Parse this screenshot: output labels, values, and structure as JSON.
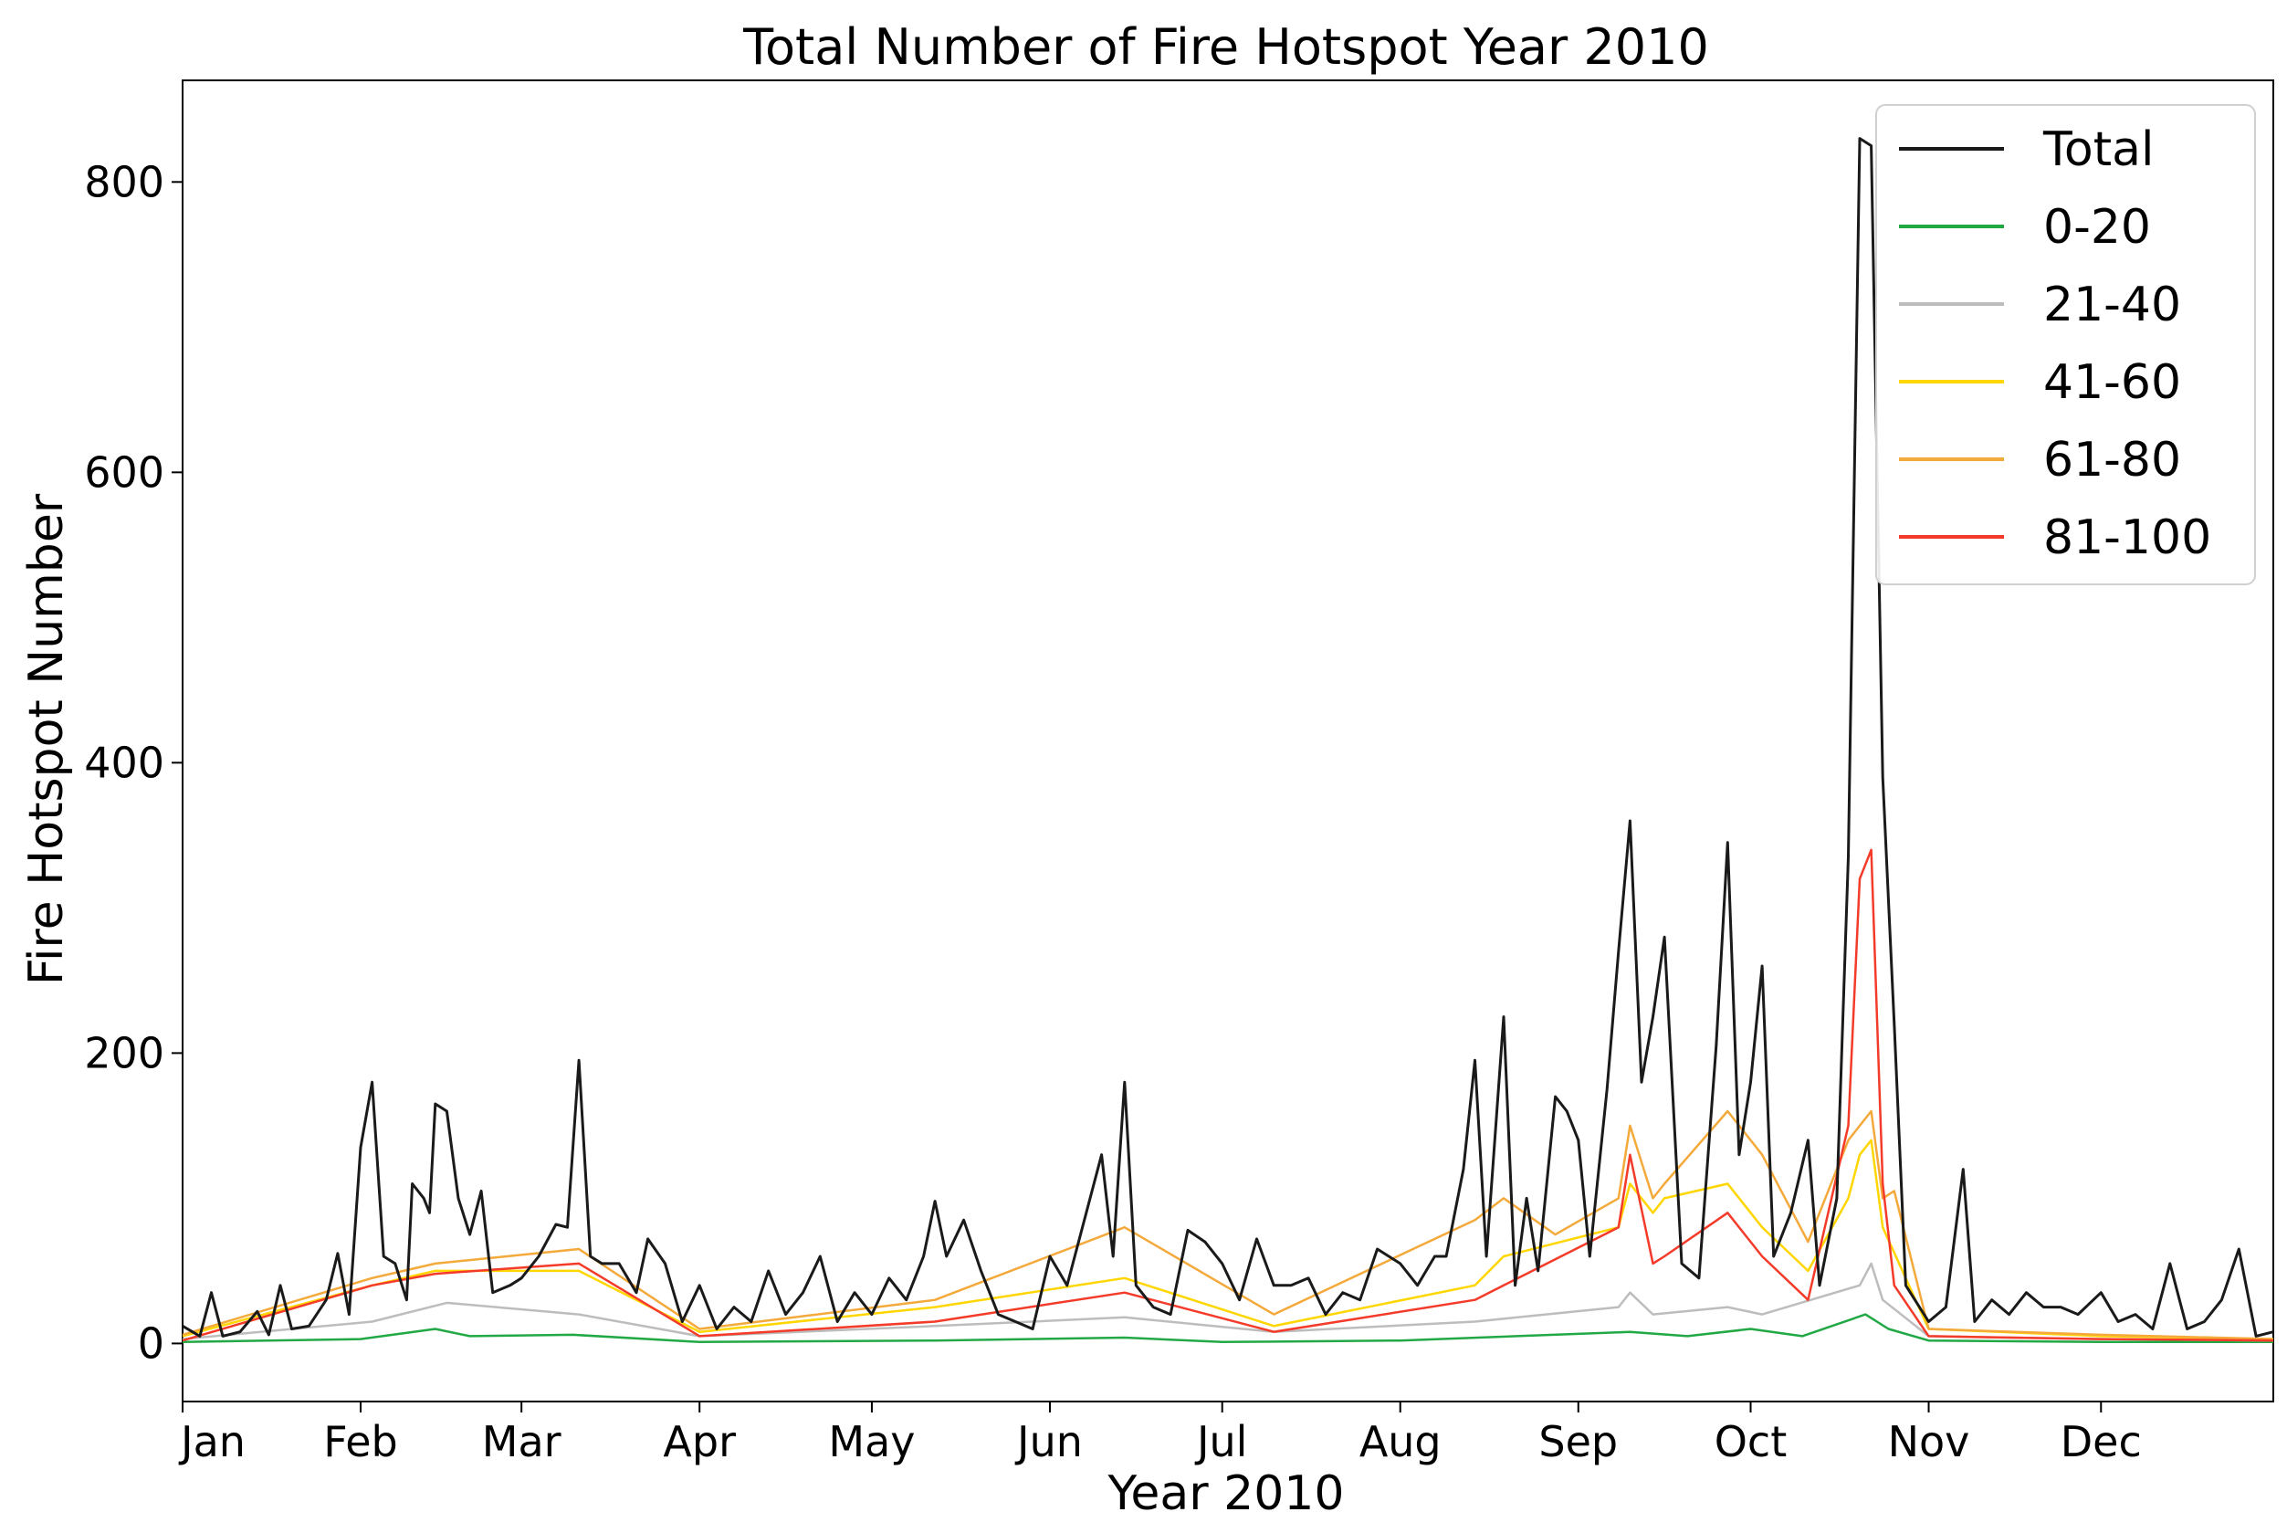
{
  "chart_data": {
    "type": "line",
    "title": "Total Number of Fire Hotspot Year 2010",
    "xlabel": "Year 2010",
    "ylabel": "Fire Hotspot Number",
    "xlim": [
      "2010-01-01",
      "2010-12-31"
    ],
    "ylim": [
      -40,
      870
    ],
    "x_ticks": [
      {
        "date": "2010-01-01",
        "label": "Jan"
      },
      {
        "date": "2010-02-01",
        "label": "Feb"
      },
      {
        "date": "2010-03-01",
        "label": "Mar"
      },
      {
        "date": "2010-04-01",
        "label": "Apr"
      },
      {
        "date": "2010-05-01",
        "label": "May"
      },
      {
        "date": "2010-06-01",
        "label": "Jun"
      },
      {
        "date": "2010-07-01",
        "label": "Jul"
      },
      {
        "date": "2010-08-01",
        "label": "Aug"
      },
      {
        "date": "2010-09-01",
        "label": "Sep"
      },
      {
        "date": "2010-10-01",
        "label": "Oct"
      },
      {
        "date": "2010-11-01",
        "label": "Nov"
      },
      {
        "date": "2010-12-01",
        "label": "Dec"
      }
    ],
    "y_ticks": [
      0,
      200,
      400,
      600,
      800
    ],
    "grid": false,
    "legend_position": "top-right",
    "series": [
      {
        "name": "Total",
        "color": "#1a1a1a",
        "points": [
          [
            "2010-01-01",
            12
          ],
          [
            "2010-01-04",
            5
          ],
          [
            "2010-01-06",
            35
          ],
          [
            "2010-01-08",
            5
          ],
          [
            "2010-01-11",
            8
          ],
          [
            "2010-01-14",
            22
          ],
          [
            "2010-01-16",
            6
          ],
          [
            "2010-01-18",
            40
          ],
          [
            "2010-01-20",
            10
          ],
          [
            "2010-01-23",
            12
          ],
          [
            "2010-01-26",
            30
          ],
          [
            "2010-01-28",
            62
          ],
          [
            "2010-01-30",
            20
          ],
          [
            "2010-02-01",
            135
          ],
          [
            "2010-02-03",
            180
          ],
          [
            "2010-02-05",
            60
          ],
          [
            "2010-02-07",
            55
          ],
          [
            "2010-02-09",
            30
          ],
          [
            "2010-02-10",
            110
          ],
          [
            "2010-02-12",
            100
          ],
          [
            "2010-02-13",
            90
          ],
          [
            "2010-02-14",
            165
          ],
          [
            "2010-02-16",
            160
          ],
          [
            "2010-02-18",
            100
          ],
          [
            "2010-02-20",
            75
          ],
          [
            "2010-02-22",
            105
          ],
          [
            "2010-02-24",
            35
          ],
          [
            "2010-02-27",
            40
          ],
          [
            "2010-03-01",
            45
          ],
          [
            "2010-03-04",
            60
          ],
          [
            "2010-03-07",
            82
          ],
          [
            "2010-03-09",
            80
          ],
          [
            "2010-03-11",
            195
          ],
          [
            "2010-03-13",
            60
          ],
          [
            "2010-03-15",
            55
          ],
          [
            "2010-03-18",
            55
          ],
          [
            "2010-03-21",
            35
          ],
          [
            "2010-03-23",
            72
          ],
          [
            "2010-03-26",
            55
          ],
          [
            "2010-03-29",
            15
          ],
          [
            "2010-04-01",
            40
          ],
          [
            "2010-04-04",
            10
          ],
          [
            "2010-04-07",
            25
          ],
          [
            "2010-04-10",
            15
          ],
          [
            "2010-04-13",
            50
          ],
          [
            "2010-04-16",
            20
          ],
          [
            "2010-04-19",
            35
          ],
          [
            "2010-04-22",
            60
          ],
          [
            "2010-04-25",
            15
          ],
          [
            "2010-04-28",
            35
          ],
          [
            "2010-05-01",
            20
          ],
          [
            "2010-05-04",
            45
          ],
          [
            "2010-05-07",
            30
          ],
          [
            "2010-05-10",
            60
          ],
          [
            "2010-05-12",
            98
          ],
          [
            "2010-05-14",
            60
          ],
          [
            "2010-05-17",
            85
          ],
          [
            "2010-05-20",
            50
          ],
          [
            "2010-05-23",
            20
          ],
          [
            "2010-05-26",
            15
          ],
          [
            "2010-05-29",
            10
          ],
          [
            "2010-06-01",
            60
          ],
          [
            "2010-06-04",
            40
          ],
          [
            "2010-06-07",
            85
          ],
          [
            "2010-06-10",
            130
          ],
          [
            "2010-06-12",
            60
          ],
          [
            "2010-06-14",
            180
          ],
          [
            "2010-06-16",
            40
          ],
          [
            "2010-06-19",
            25
          ],
          [
            "2010-06-22",
            20
          ],
          [
            "2010-06-25",
            78
          ],
          [
            "2010-06-28",
            70
          ],
          [
            "2010-07-01",
            55
          ],
          [
            "2010-07-04",
            30
          ],
          [
            "2010-07-07",
            72
          ],
          [
            "2010-07-10",
            40
          ],
          [
            "2010-07-13",
            40
          ],
          [
            "2010-07-16",
            45
          ],
          [
            "2010-07-19",
            20
          ],
          [
            "2010-07-22",
            35
          ],
          [
            "2010-07-25",
            30
          ],
          [
            "2010-07-28",
            65
          ],
          [
            "2010-08-01",
            55
          ],
          [
            "2010-08-04",
            40
          ],
          [
            "2010-08-07",
            60
          ],
          [
            "2010-08-09",
            60
          ],
          [
            "2010-08-12",
            120
          ],
          [
            "2010-08-14",
            195
          ],
          [
            "2010-08-16",
            60
          ],
          [
            "2010-08-19",
            225
          ],
          [
            "2010-08-21",
            40
          ],
          [
            "2010-08-23",
            100
          ],
          [
            "2010-08-25",
            50
          ],
          [
            "2010-08-28",
            170
          ],
          [
            "2010-08-30",
            160
          ],
          [
            "2010-09-01",
            140
          ],
          [
            "2010-09-03",
            60
          ],
          [
            "2010-09-06",
            175
          ],
          [
            "2010-09-08",
            270
          ],
          [
            "2010-09-10",
            360
          ],
          [
            "2010-09-12",
            180
          ],
          [
            "2010-09-14",
            225
          ],
          [
            "2010-09-16",
            280
          ],
          [
            "2010-09-19",
            55
          ],
          [
            "2010-09-22",
            45
          ],
          [
            "2010-09-25",
            205
          ],
          [
            "2010-09-27",
            345
          ],
          [
            "2010-09-29",
            130
          ],
          [
            "2010-10-01",
            180
          ],
          [
            "2010-10-03",
            260
          ],
          [
            "2010-10-05",
            60
          ],
          [
            "2010-10-08",
            90
          ],
          [
            "2010-10-11",
            140
          ],
          [
            "2010-10-13",
            40
          ],
          [
            "2010-10-16",
            100
          ],
          [
            "2010-10-18",
            335
          ],
          [
            "2010-10-20",
            830
          ],
          [
            "2010-10-22",
            825
          ],
          [
            "2010-10-24",
            390
          ],
          [
            "2010-10-26",
            220
          ],
          [
            "2010-10-28",
            40
          ],
          [
            "2010-11-01",
            15
          ],
          [
            "2010-11-04",
            25
          ],
          [
            "2010-11-07",
            120
          ],
          [
            "2010-11-09",
            15
          ],
          [
            "2010-11-12",
            30
          ],
          [
            "2010-11-15",
            20
          ],
          [
            "2010-11-18",
            35
          ],
          [
            "2010-11-21",
            25
          ],
          [
            "2010-11-24",
            25
          ],
          [
            "2010-11-27",
            20
          ],
          [
            "2010-12-01",
            35
          ],
          [
            "2010-12-04",
            15
          ],
          [
            "2010-12-07",
            20
          ],
          [
            "2010-12-10",
            10
          ],
          [
            "2010-12-13",
            55
          ],
          [
            "2010-12-16",
            10
          ],
          [
            "2010-12-19",
            15
          ],
          [
            "2010-12-22",
            30
          ],
          [
            "2010-12-25",
            65
          ],
          [
            "2010-12-28",
            5
          ],
          [
            "2010-12-31",
            8
          ]
        ]
      },
      {
        "name": "0-20",
        "color": "#22a845",
        "points": [
          [
            "2010-01-01",
            1
          ],
          [
            "2010-02-01",
            3
          ],
          [
            "2010-02-14",
            10
          ],
          [
            "2010-02-20",
            5
          ],
          [
            "2010-03-10",
            6
          ],
          [
            "2010-04-01",
            1
          ],
          [
            "2010-05-12",
            2
          ],
          [
            "2010-06-14",
            4
          ],
          [
            "2010-07-01",
            1
          ],
          [
            "2010-08-01",
            2
          ],
          [
            "2010-09-10",
            8
          ],
          [
            "2010-09-20",
            5
          ],
          [
            "2010-10-01",
            10
          ],
          [
            "2010-10-10",
            5
          ],
          [
            "2010-10-21",
            20
          ],
          [
            "2010-10-25",
            10
          ],
          [
            "2010-11-01",
            2
          ],
          [
            "2010-12-01",
            1
          ],
          [
            "2010-12-31",
            1
          ]
        ]
      },
      {
        "name": "21-40",
        "color": "#bdbdbd",
        "points": [
          [
            "2010-01-01",
            3
          ],
          [
            "2010-02-03",
            15
          ],
          [
            "2010-02-16",
            28
          ],
          [
            "2010-03-11",
            20
          ],
          [
            "2010-04-01",
            5
          ],
          [
            "2010-05-12",
            12
          ],
          [
            "2010-06-14",
            18
          ],
          [
            "2010-07-10",
            8
          ],
          [
            "2010-08-14",
            15
          ],
          [
            "2010-09-08",
            25
          ],
          [
            "2010-09-10",
            35
          ],
          [
            "2010-09-14",
            20
          ],
          [
            "2010-09-27",
            25
          ],
          [
            "2010-10-03",
            20
          ],
          [
            "2010-10-20",
            40
          ],
          [
            "2010-10-22",
            55
          ],
          [
            "2010-10-24",
            30
          ],
          [
            "2010-11-01",
            5
          ],
          [
            "2010-12-01",
            3
          ],
          [
            "2010-12-31",
            2
          ]
        ]
      },
      {
        "name": "41-60",
        "color": "#ffd600",
        "points": [
          [
            "2010-01-01",
            5
          ],
          [
            "2010-02-03",
            40
          ],
          [
            "2010-02-14",
            50
          ],
          [
            "2010-03-11",
            50
          ],
          [
            "2010-04-01",
            8
          ],
          [
            "2010-05-12",
            25
          ],
          [
            "2010-06-14",
            45
          ],
          [
            "2010-07-10",
            12
          ],
          [
            "2010-08-14",
            40
          ],
          [
            "2010-08-19",
            60
          ],
          [
            "2010-09-08",
            80
          ],
          [
            "2010-09-10",
            110
          ],
          [
            "2010-09-14",
            90
          ],
          [
            "2010-09-16",
            100
          ],
          [
            "2010-09-27",
            110
          ],
          [
            "2010-10-03",
            80
          ],
          [
            "2010-10-11",
            50
          ],
          [
            "2010-10-18",
            100
          ],
          [
            "2010-10-20",
            130
          ],
          [
            "2010-10-22",
            140
          ],
          [
            "2010-10-24",
            80
          ],
          [
            "2010-11-01",
            10
          ],
          [
            "2010-12-01",
            5
          ],
          [
            "2010-12-31",
            3
          ]
        ]
      },
      {
        "name": "61-80",
        "color": "#f4a93b",
        "points": [
          [
            "2010-01-01",
            6
          ],
          [
            "2010-02-03",
            45
          ],
          [
            "2010-02-14",
            55
          ],
          [
            "2010-03-11",
            65
          ],
          [
            "2010-04-01",
            10
          ],
          [
            "2010-05-12",
            30
          ],
          [
            "2010-06-14",
            80
          ],
          [
            "2010-07-10",
            20
          ],
          [
            "2010-08-14",
            85
          ],
          [
            "2010-08-19",
            100
          ],
          [
            "2010-08-28",
            75
          ],
          [
            "2010-09-08",
            100
          ],
          [
            "2010-09-10",
            150
          ],
          [
            "2010-09-14",
            100
          ],
          [
            "2010-09-16",
            110
          ],
          [
            "2010-09-27",
            160
          ],
          [
            "2010-10-03",
            130
          ],
          [
            "2010-10-11",
            70
          ],
          [
            "2010-10-18",
            140
          ],
          [
            "2010-10-20",
            150
          ],
          [
            "2010-10-22",
            160
          ],
          [
            "2010-10-24",
            100
          ],
          [
            "2010-10-26",
            105
          ],
          [
            "2010-11-01",
            10
          ],
          [
            "2010-12-01",
            6
          ],
          [
            "2010-12-31",
            3
          ]
        ]
      },
      {
        "name": "81-100",
        "color": "#f43b2a",
        "points": [
          [
            "2010-01-01",
            2
          ],
          [
            "2010-02-03",
            40
          ],
          [
            "2010-02-14",
            48
          ],
          [
            "2010-03-11",
            55
          ],
          [
            "2010-04-01",
            5
          ],
          [
            "2010-05-12",
            15
          ],
          [
            "2010-06-14",
            35
          ],
          [
            "2010-07-10",
            8
          ],
          [
            "2010-08-14",
            30
          ],
          [
            "2010-08-19",
            40
          ],
          [
            "2010-09-08",
            80
          ],
          [
            "2010-09-10",
            130
          ],
          [
            "2010-09-14",
            55
          ],
          [
            "2010-09-16",
            60
          ],
          [
            "2010-09-27",
            90
          ],
          [
            "2010-10-03",
            60
          ],
          [
            "2010-10-11",
            30
          ],
          [
            "2010-10-18",
            150
          ],
          [
            "2010-10-20",
            320
          ],
          [
            "2010-10-22",
            340
          ],
          [
            "2010-10-24",
            110
          ],
          [
            "2010-10-26",
            40
          ],
          [
            "2010-11-01",
            5
          ],
          [
            "2010-12-01",
            3
          ],
          [
            "2010-12-31",
            2
          ]
        ]
      }
    ]
  }
}
